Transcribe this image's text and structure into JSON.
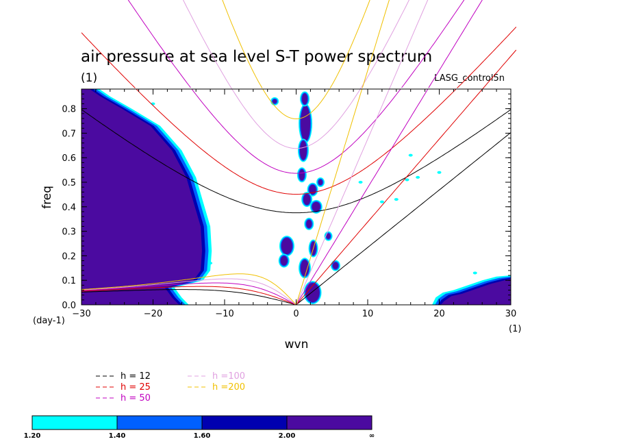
{
  "chart_data": {
    "type": "heatmap",
    "title": "air pressure at sea level S-T power spectrum",
    "units_label": "(1)",
    "run_label": "LASG_control5n",
    "xlabel": "wvn",
    "ylabel": "freq",
    "x_unit_label": "(1)",
    "y_unit_label": "(day-1)",
    "xlim": [
      -30,
      30
    ],
    "ylim": [
      0.0,
      0.88
    ],
    "x_ticks": [
      -30,
      -20,
      -10,
      0,
      10,
      20,
      30
    ],
    "x_tick_labels": [
      "-30",
      "-20",
      "-10",
      "0",
      "10",
      "20",
      "30"
    ],
    "y_ticks": [
      0.0,
      0.1,
      0.2,
      0.3,
      0.4,
      0.5,
      0.6,
      0.7,
      0.8
    ],
    "y_tick_labels": [
      "0.0",
      "0.1",
      "0.2",
      "0.3",
      "0.4",
      "0.5",
      "0.6",
      "0.7",
      "0.8"
    ],
    "contour_levels": {
      "labels": [
        "1.20",
        "1.40",
        "1.60",
        "2.00",
        "∞"
      ],
      "colors": [
        "#00ffff",
        "#0060ff",
        "#0000b0",
        "#4b0aa0"
      ]
    },
    "dispersion_curves": {
      "legend": [
        {
          "label": "h = 12",
          "color": "#000000",
          "h": 12
        },
        {
          "label": "h = 25",
          "color": "#e00000",
          "h": 25
        },
        {
          "label": "h = 50",
          "color": "#c000c0",
          "h": 50
        },
        {
          "label": "h =100",
          "color": "#e0a0e0",
          "h": 100
        },
        {
          "label": "h =200",
          "color": "#f0c000",
          "h": 200
        }
      ]
    },
    "regions": [
      {
        "name": "westward low-frequency band",
        "wvn_range": [
          -30,
          -13
        ],
        "freq_range": [
          0.0,
          0.88
        ],
        "level": "≥2.00"
      },
      {
        "name": "eastward low-frequency patch",
        "wvn_range": [
          19,
          30
        ],
        "freq_range": [
          0.0,
          0.12
        ],
        "level": "≥2.00"
      },
      {
        "name": "near-zero wavenumber column",
        "wvn_range": [
          0,
          4
        ],
        "freq_range": [
          0.0,
          0.88
        ],
        "level": "mixed"
      }
    ]
  }
}
